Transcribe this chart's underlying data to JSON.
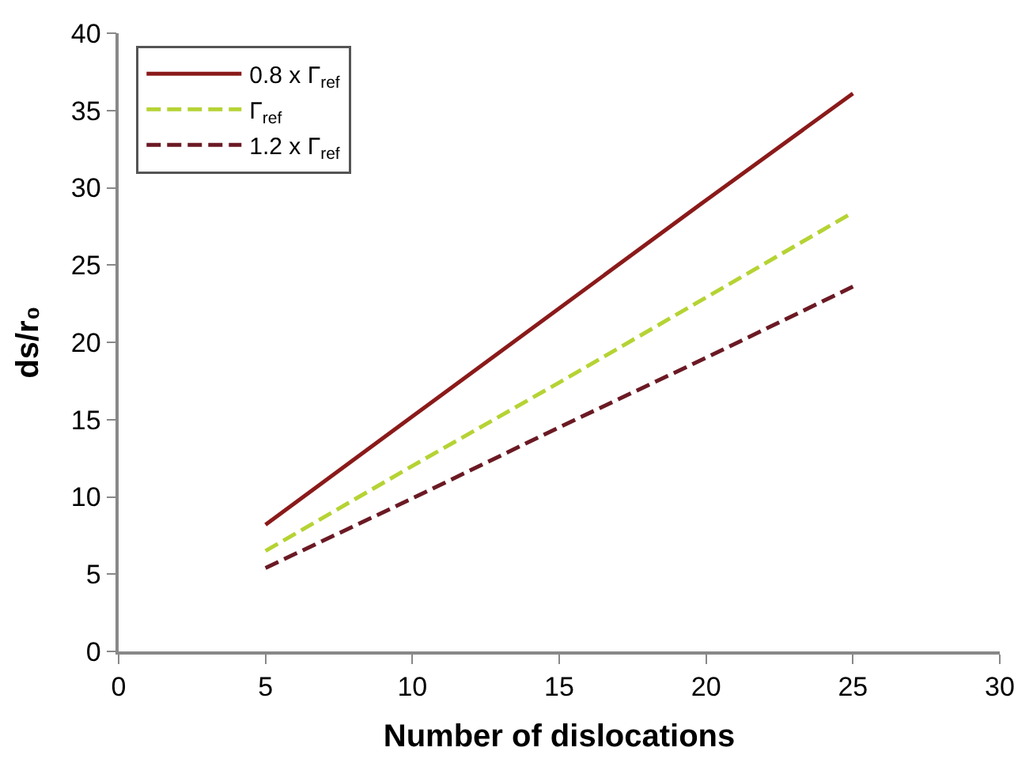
{
  "chart_data": {
    "type": "line",
    "xlabel": "Number of dislocations",
    "ylabel": "ds/r₀",
    "x": [
      5,
      10,
      15,
      20,
      25
    ],
    "series": [
      {
        "name": "0.8 x Γ$_{ref}$",
        "color": "#8b1a1a",
        "line_style": "solid",
        "values": [
          8.2,
          15.2,
          22.2,
          29.2,
          36.1
        ]
      },
      {
        "name": "Γ$_{ref}$",
        "color": "#b5d334",
        "line_style": "dashed",
        "values": [
          6.5,
          12,
          17.4,
          22.9,
          28.4
        ]
      },
      {
        "name": "1.2 x Γ$_{ref}$",
        "color": "#6b1a24",
        "line_style": "dashed",
        "values": [
          5.4,
          9.9,
          14.5,
          19,
          23.6
        ]
      }
    ],
    "xlim": [
      0,
      30
    ],
    "xticks": [
      0,
      5,
      10,
      15,
      20,
      25,
      30
    ],
    "ylim": [
      0,
      40
    ],
    "yticks": [
      0,
      5,
      10,
      15,
      20,
      25,
      30,
      35,
      40
    ],
    "grid": false,
    "legend": "top left",
    "marker": "none"
  }
}
